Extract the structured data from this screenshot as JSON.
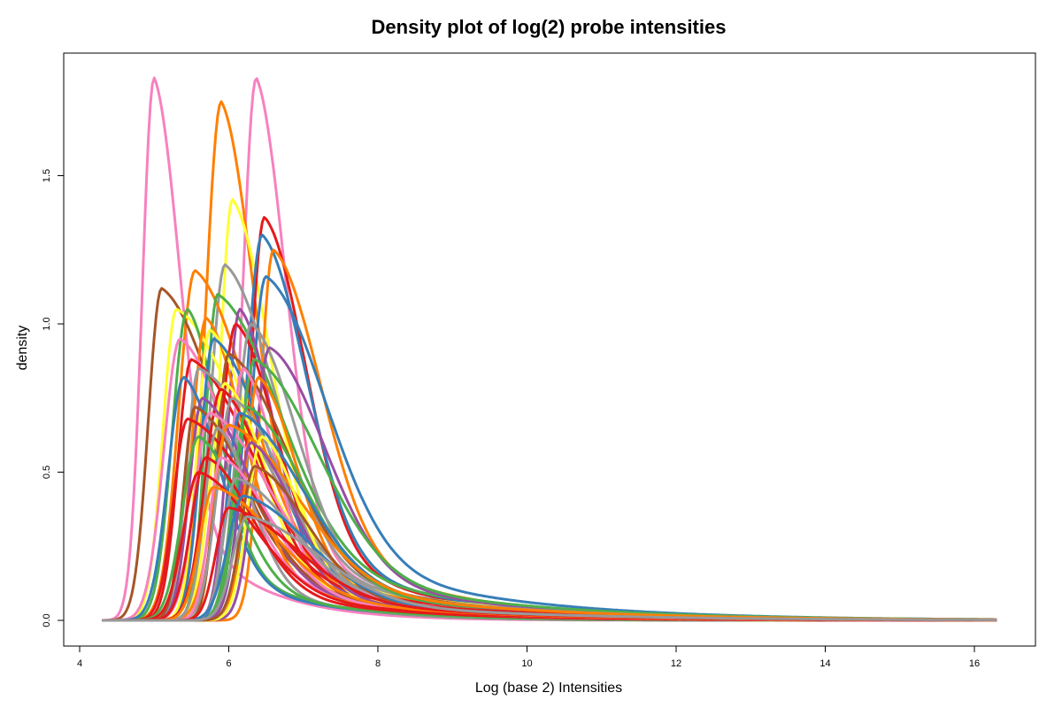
{
  "chart_data": {
    "type": "line",
    "title": "Density plot of log(2) probe intensities",
    "xlabel": "Log (base 2) Intensities",
    "ylabel": "density",
    "xlim": [
      4,
      16.4
    ],
    "ylim": [
      0,
      1.85
    ],
    "xticks": [
      "4",
      "6",
      "8",
      "10",
      "12",
      "14",
      "16"
    ],
    "yticks": [
      "0.0",
      "0.5",
      "1.0",
      "1.5"
    ],
    "xtick_values": [
      4,
      6,
      8,
      10,
      12,
      14,
      16
    ],
    "ytick_values": [
      0,
      0.5,
      1.0,
      1.5
    ],
    "grid": false,
    "legend": "none",
    "palette": [
      "#E41A1C",
      "#377EB8",
      "#4DAF4A",
      "#984EA3",
      "#FF7F00",
      "#FFFF33",
      "#A65628",
      "#F781BF",
      "#999999"
    ],
    "series": [
      {
        "color": "#F781BF",
        "peak_x": 5.0,
        "peak_y": 1.83
      },
      {
        "color": "#F781BF",
        "peak_x": 6.37,
        "peak_y": 1.83
      },
      {
        "color": "#FF7F00",
        "peak_x": 5.9,
        "peak_y": 1.75
      },
      {
        "color": "#FFFF33",
        "peak_x": 6.05,
        "peak_y": 1.42
      },
      {
        "color": "#E41A1C",
        "peak_x": 6.48,
        "peak_y": 1.36
      },
      {
        "color": "#377EB8",
        "peak_x": 6.45,
        "peak_y": 1.3
      },
      {
        "color": "#FF7F00",
        "peak_x": 6.6,
        "peak_y": 1.25
      },
      {
        "color": "#999999",
        "peak_x": 5.95,
        "peak_y": 1.2
      },
      {
        "color": "#FF7F00",
        "peak_x": 5.55,
        "peak_y": 1.18
      },
      {
        "color": "#A65628",
        "peak_x": 5.1,
        "peak_y": 1.12
      },
      {
        "color": "#377EB8",
        "peak_x": 6.5,
        "peak_y": 1.16
      },
      {
        "color": "#4DAF4A",
        "peak_x": 5.85,
        "peak_y": 1.1
      },
      {
        "color": "#FFFF33",
        "peak_x": 5.3,
        "peak_y": 1.05
      },
      {
        "color": "#4DAF4A",
        "peak_x": 5.45,
        "peak_y": 1.05
      },
      {
        "color": "#984EA3",
        "peak_x": 6.15,
        "peak_y": 1.05
      },
      {
        "color": "#FF7F00",
        "peak_x": 5.7,
        "peak_y": 1.02
      },
      {
        "color": "#E41A1C",
        "peak_x": 6.1,
        "peak_y": 1.0
      },
      {
        "color": "#FFFF33",
        "peak_x": 5.75,
        "peak_y": 0.98
      },
      {
        "color": "#999999",
        "peak_x": 6.3,
        "peak_y": 1.0
      },
      {
        "color": "#F781BF",
        "peak_x": 5.35,
        "peak_y": 0.95
      },
      {
        "color": "#377EB8",
        "peak_x": 5.8,
        "peak_y": 0.95
      },
      {
        "color": "#984EA3",
        "peak_x": 6.55,
        "peak_y": 0.92
      },
      {
        "color": "#A65628",
        "peak_x": 6.0,
        "peak_y": 0.9
      },
      {
        "color": "#E41A1C",
        "peak_x": 5.5,
        "peak_y": 0.88
      },
      {
        "color": "#4DAF4A",
        "peak_x": 6.35,
        "peak_y": 0.88
      },
      {
        "color": "#999999",
        "peak_x": 5.6,
        "peak_y": 0.85
      },
      {
        "color": "#F781BF",
        "peak_x": 6.2,
        "peak_y": 0.85
      },
      {
        "color": "#377EB8",
        "peak_x": 5.4,
        "peak_y": 0.82
      },
      {
        "color": "#FF7F00",
        "peak_x": 6.4,
        "peak_y": 0.82
      },
      {
        "color": "#FFFF33",
        "peak_x": 5.95,
        "peak_y": 0.8
      },
      {
        "color": "#E41A1C",
        "peak_x": 5.9,
        "peak_y": 0.78
      },
      {
        "color": "#984EA3",
        "peak_x": 5.65,
        "peak_y": 0.75
      },
      {
        "color": "#999999",
        "peak_x": 6.05,
        "peak_y": 0.75
      },
      {
        "color": "#A65628",
        "peak_x": 5.55,
        "peak_y": 0.72
      },
      {
        "color": "#4DAF4A",
        "peak_x": 6.25,
        "peak_y": 0.72
      },
      {
        "color": "#F781BF",
        "peak_x": 5.75,
        "peak_y": 0.7
      },
      {
        "color": "#377EB8",
        "peak_x": 6.15,
        "peak_y": 0.7
      },
      {
        "color": "#E41A1C",
        "peak_x": 5.45,
        "peak_y": 0.68
      },
      {
        "color": "#FF7F00",
        "peak_x": 6.0,
        "peak_y": 0.66
      },
      {
        "color": "#999999",
        "peak_x": 5.85,
        "peak_y": 0.65
      },
      {
        "color": "#FFFF33",
        "peak_x": 6.45,
        "peak_y": 0.62
      },
      {
        "color": "#4DAF4A",
        "peak_x": 5.6,
        "peak_y": 0.62
      },
      {
        "color": "#984EA3",
        "peak_x": 6.3,
        "peak_y": 0.6
      },
      {
        "color": "#E41A1C",
        "peak_x": 5.7,
        "peak_y": 0.55
      },
      {
        "color": "#F781BF",
        "peak_x": 5.9,
        "peak_y": 0.55
      },
      {
        "color": "#A65628",
        "peak_x": 6.35,
        "peak_y": 0.52
      },
      {
        "color": "#E41A1C",
        "peak_x": 5.6,
        "peak_y": 0.5
      },
      {
        "color": "#999999",
        "peak_x": 6.1,
        "peak_y": 0.48
      },
      {
        "color": "#FF7F00",
        "peak_x": 5.8,
        "peak_y": 0.45
      },
      {
        "color": "#377EB8",
        "peak_x": 6.2,
        "peak_y": 0.42
      },
      {
        "color": "#E41A1C",
        "peak_x": 6.0,
        "peak_y": 0.38
      },
      {
        "color": "#999999",
        "peak_x": 6.25,
        "peak_y": 0.35
      }
    ]
  }
}
